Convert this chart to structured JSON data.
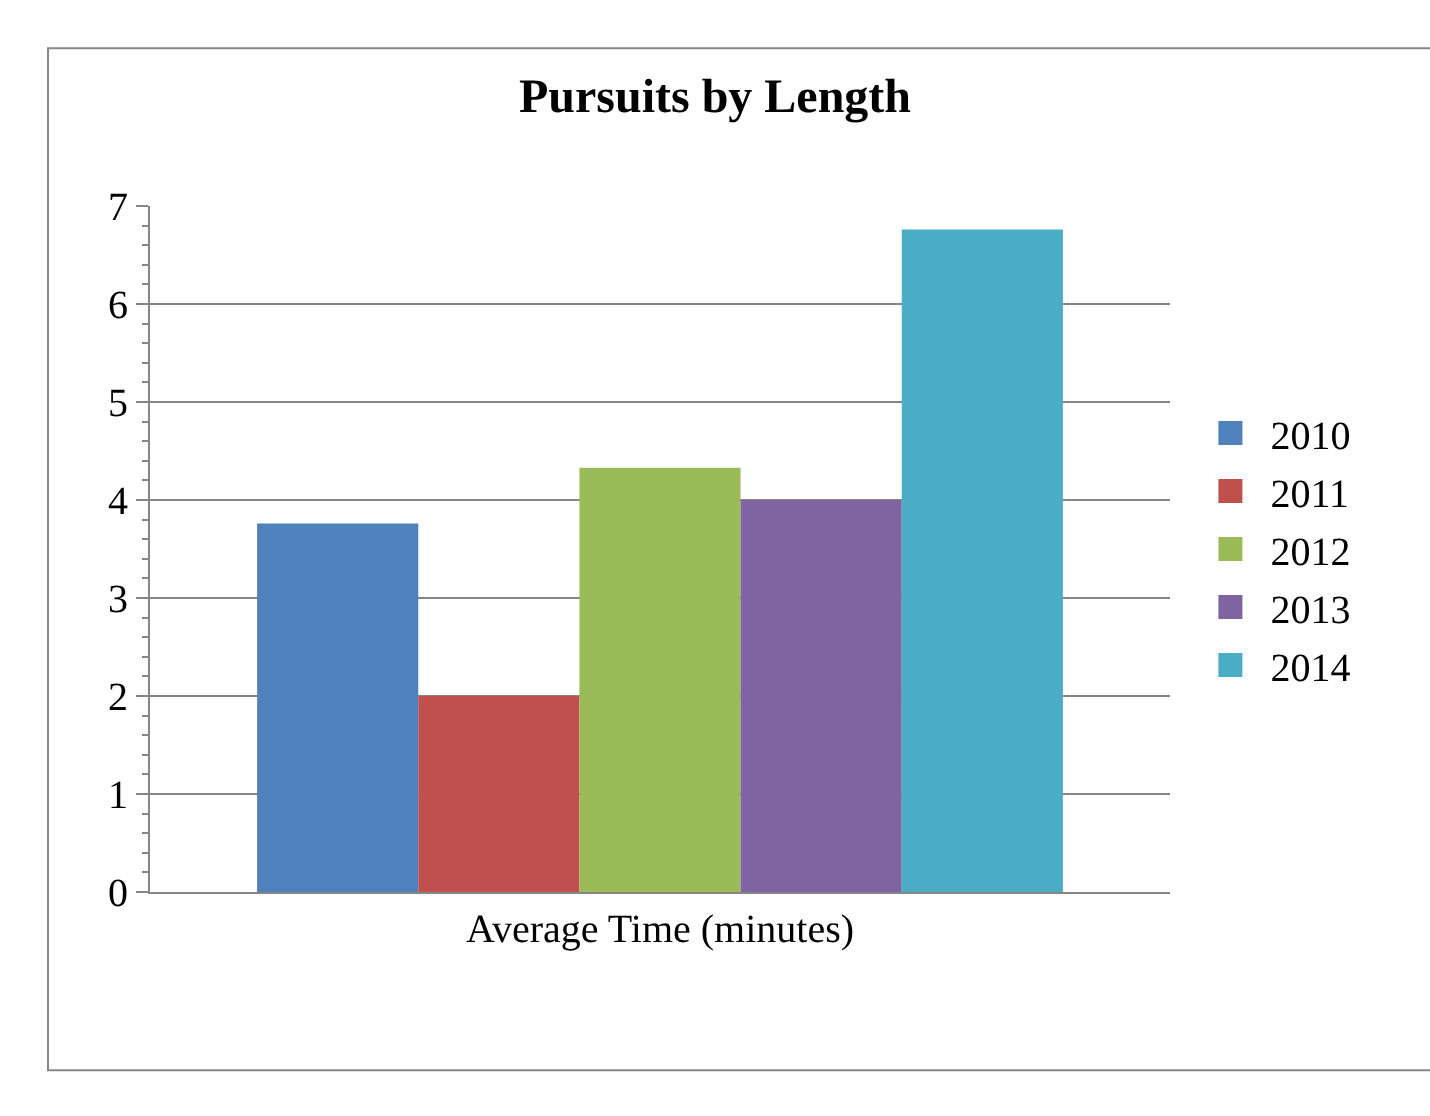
{
  "chart_data": {
    "type": "bar",
    "title": "Pursuits by Length",
    "categories": [
      "Average Time (minutes)"
    ],
    "series": [
      {
        "name": "2010",
        "color": "#4f81bd",
        "values": [
          3.76
        ]
      },
      {
        "name": "2011",
        "color": "#c0504d",
        "values": [
          2.0
        ]
      },
      {
        "name": "2012",
        "color": "#9bbb59",
        "values": [
          4.33
        ]
      },
      {
        "name": "2013",
        "color": "#8064a2",
        "values": [
          4.0
        ]
      },
      {
        "name": "2014",
        "color": "#4bacc6",
        "values": [
          6.76
        ]
      }
    ],
    "ylim": [
      0,
      7
    ],
    "yticks": [
      0,
      1,
      2,
      3,
      4,
      5,
      6,
      7
    ],
    "grid": "y",
    "legend": "right"
  }
}
